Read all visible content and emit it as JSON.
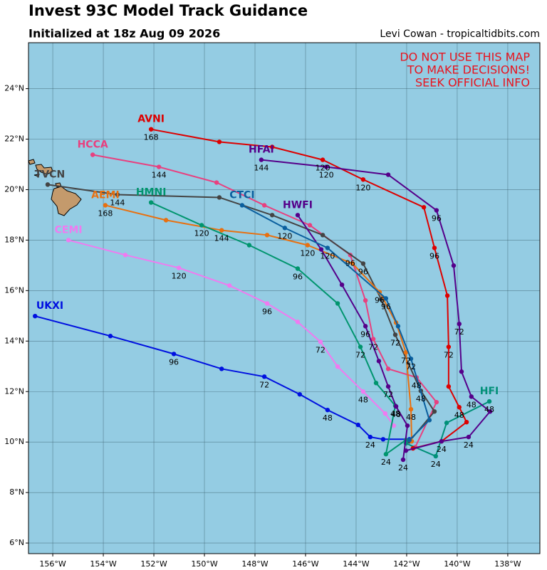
{
  "chart_data": {
    "type": "track-map",
    "title": "Invest 93C Model Track Guidance",
    "subtitle": "Initialized at 18z Aug 09 2026",
    "credit": "Levi Cowan - tropicaltidbits.com",
    "warning": [
      "DO NOT USE THIS MAP",
      "TO MAKE DECISIONS!",
      "SEEK OFFICIAL INFO"
    ],
    "warning_color": "#e8141e",
    "ocean_color": "#94cce3",
    "grid": true,
    "xlim": [
      -156.96,
      -136.73
    ],
    "ylim": [
      5.58,
      25.82
    ],
    "xticks": [
      {
        "value": -156,
        "label": "156°W"
      },
      {
        "value": -154,
        "label": "154°W"
      },
      {
        "value": -152,
        "label": "152°W"
      },
      {
        "value": -150,
        "label": "150°W"
      },
      {
        "value": -148,
        "label": "148°W"
      },
      {
        "value": -146,
        "label": "146°W"
      },
      {
        "value": -144,
        "label": "144°W"
      },
      {
        "value": -142,
        "label": "142°W"
      },
      {
        "value": -140,
        "label": "140°W"
      },
      {
        "value": -138,
        "label": "138°W"
      }
    ],
    "yticks": [
      {
        "value": 6,
        "label": "6°N"
      },
      {
        "value": 8,
        "label": "8°N"
      },
      {
        "value": 10,
        "label": "10°N"
      },
      {
        "value": 12,
        "label": "12°N"
      },
      {
        "value": 14,
        "label": "14°N"
      },
      {
        "value": 16,
        "label": "16°N"
      },
      {
        "value": 18,
        "label": "18°N"
      },
      {
        "value": 20,
        "label": "20°N"
      },
      {
        "value": 22,
        "label": "22°N"
      },
      {
        "value": 24,
        "label": "24°N"
      }
    ],
    "series": [
      {
        "name": "UKXI",
        "color": "#0010e0",
        "points": [
          {
            "lon": -141.89,
            "lat": 10.11
          },
          {
            "lon": -142.93,
            "lat": 10.11
          },
          {
            "lon": -143.44,
            "lat": 10.2,
            "hour": 24
          },
          {
            "lon": -143.92,
            "lat": 10.68
          },
          {
            "lon": -145.13,
            "lat": 11.27,
            "hour": 48
          },
          {
            "lon": -146.23,
            "lat": 11.89
          },
          {
            "lon": -147.63,
            "lat": 12.59,
            "hour": 72
          },
          {
            "lon": -149.32,
            "lat": 12.9
          },
          {
            "lon": -151.21,
            "lat": 13.49,
            "hour": 96
          },
          {
            "lon": -153.72,
            "lat": 14.2
          },
          {
            "lon": -156.7,
            "lat": 14.99
          }
        ]
      },
      {
        "name": "CEMI",
        "color": "#f07af0",
        "points": [
          {
            "lon": -142.51,
            "lat": 10.65
          },
          {
            "lon": -142.85,
            "lat": 11.13
          },
          {
            "lon": -143.72,
            "lat": 12.0,
            "hour": 48
          },
          {
            "lon": -144.73,
            "lat": 12.99
          },
          {
            "lon": -145.41,
            "lat": 13.97,
            "hour": 72
          },
          {
            "lon": -146.31,
            "lat": 14.76
          },
          {
            "lon": -147.52,
            "lat": 15.49,
            "hour": 96
          },
          {
            "lon": -149.01,
            "lat": 16.2
          },
          {
            "lon": -151.01,
            "lat": 16.9,
            "hour": 120
          },
          {
            "lon": -153.13,
            "lat": 17.41
          },
          {
            "lon": -155.38,
            "lat": 18.0
          }
        ]
      },
      {
        "name": "HCCA",
        "color": "#e8407f",
        "points": [
          {
            "lon": -141.66,
            "lat": 9.8
          },
          {
            "lon": -140.82,
            "lat": 11.58
          },
          {
            "lon": -141.61,
            "lat": 12.56,
            "hour": 48
          },
          {
            "lon": -142.73,
            "lat": 12.9
          },
          {
            "lon": -143.32,
            "lat": 14.08,
            "hour": 72
          },
          {
            "lon": -143.63,
            "lat": 15.61
          },
          {
            "lon": -144.23,
            "lat": 17.41,
            "hour": 96
          },
          {
            "lon": -145.83,
            "lat": 18.59
          },
          {
            "lon": -147.63,
            "lat": 19.38
          },
          {
            "lon": -149.52,
            "lat": 20.28
          },
          {
            "lon": -151.8,
            "lat": 20.9,
            "hour": 144
          },
          {
            "lon": -154.42,
            "lat": 21.38
          }
        ]
      },
      {
        "name": "TVCN",
        "color": "#444444",
        "points": [
          {
            "lon": -141.89,
            "lat": 10.03
          },
          {
            "lon": -140.9,
            "lat": 11.21
          },
          {
            "lon": -141.44,
            "lat": 12.03,
            "hour": 48
          },
          {
            "lon": -142.45,
            "lat": 14.25,
            "hour": 72
          },
          {
            "lon": -143.01,
            "lat": 15.66
          },
          {
            "lon": -143.72,
            "lat": 17.07,
            "hour": 96
          },
          {
            "lon": -145.32,
            "lat": 18.2
          },
          {
            "lon": -147.32,
            "lat": 18.99
          },
          {
            "lon": -149.41,
            "lat": 19.69
          },
          {
            "lon": -153.44,
            "lat": 19.8,
            "hour": 144
          },
          {
            "lon": -156.2,
            "lat": 20.2
          }
        ]
      },
      {
        "name": "AEMI",
        "color": "#e87010",
        "points": [
          {
            "lon": -141.8,
            "lat": 10.03
          },
          {
            "lon": -141.83,
            "lat": 11.3,
            "hour": 48
          },
          {
            "lon": -142.03,
            "lat": 13.55,
            "hour": 72
          },
          {
            "lon": -142.42,
            "lat": 14.73
          },
          {
            "lon": -143.07,
            "lat": 15.94,
            "hour": 96
          },
          {
            "lon": -144.14,
            "lat": 17.07
          },
          {
            "lon": -145.92,
            "lat": 17.8,
            "hour": 120
          },
          {
            "lon": -147.52,
            "lat": 18.2
          },
          {
            "lon": -149.32,
            "lat": 18.39,
            "hour": 144
          },
          {
            "lon": -151.52,
            "lat": 18.79
          },
          {
            "lon": -153.92,
            "lat": 19.38,
            "hour": 168
          }
        ]
      },
      {
        "name": "HMNI",
        "color": "#00956e",
        "points": [
          {
            "lon": -142.03,
            "lat": 10.08
          },
          {
            "lon": -142.82,
            "lat": 9.52,
            "hour": 24
          },
          {
            "lon": -142.45,
            "lat": 11.44,
            "hour": 48
          },
          {
            "lon": -143.21,
            "lat": 12.34
          },
          {
            "lon": -143.83,
            "lat": 13.77,
            "hour": 72
          },
          {
            "lon": -144.73,
            "lat": 15.49
          },
          {
            "lon": -146.31,
            "lat": 16.87,
            "hour": 96
          },
          {
            "lon": -148.23,
            "lat": 17.8
          },
          {
            "lon": -150.11,
            "lat": 18.59,
            "hour": 120
          },
          {
            "lon": -152.11,
            "lat": 19.49
          }
        ]
      },
      {
        "name": "HFI",
        "color": "#009078",
        "points": [
          {
            "lon": -142.03,
            "lat": 9.95
          },
          {
            "lon": -140.85,
            "lat": 9.44,
            "hour": 24
          },
          {
            "lon": -140.42,
            "lat": 10.76
          },
          {
            "lon": -138.73,
            "lat": 11.61,
            "hour": 48
          }
        ]
      },
      {
        "name": "AVNI",
        "color": "#dd0000",
        "points": [
          {
            "lon": -141.75,
            "lat": 9.75
          },
          {
            "lon": -140.62,
            "lat": 10.03,
            "hour": 24
          },
          {
            "lon": -139.63,
            "lat": 10.79
          },
          {
            "lon": -139.92,
            "lat": 11.38,
            "hour": 48
          },
          {
            "lon": -140.34,
            "lat": 12.2
          },
          {
            "lon": -140.34,
            "lat": 13.77,
            "hour": 72
          },
          {
            "lon": -140.39,
            "lat": 15.8
          },
          {
            "lon": -140.9,
            "lat": 17.69,
            "hour": 96
          },
          {
            "lon": -141.32,
            "lat": 19.3
          },
          {
            "lon": -143.72,
            "lat": 20.4,
            "hour": 120
          },
          {
            "lon": -145.32,
            "lat": 21.18,
            "hour": 120
          },
          {
            "lon": -147.32,
            "lat": 21.69
          },
          {
            "lon": -149.41,
            "lat": 21.89
          },
          {
            "lon": -152.11,
            "lat": 22.39,
            "hour": 168
          }
        ]
      },
      {
        "name": "HFAI",
        "color": "#55008a",
        "points": [
          {
            "lon": -142.03,
            "lat": 9.66
          },
          {
            "lon": -140.62,
            "lat": 10.03
          },
          {
            "lon": -139.55,
            "lat": 10.2,
            "hour": 24
          },
          {
            "lon": -138.7,
            "lat": 11.21
          },
          {
            "lon": -139.44,
            "lat": 11.8,
            "hour": 48
          },
          {
            "lon": -139.83,
            "lat": 12.79
          },
          {
            "lon": -139.92,
            "lat": 14.68,
            "hour": 72
          },
          {
            "lon": -140.14,
            "lat": 16.99
          },
          {
            "lon": -140.82,
            "lat": 19.18,
            "hour": 96
          },
          {
            "lon": -142.73,
            "lat": 20.59
          },
          {
            "lon": -145.18,
            "lat": 20.9,
            "hour": 120
          },
          {
            "lon": -147.75,
            "lat": 21.18,
            "hour": 144
          }
        ]
      },
      {
        "name": "HWFI",
        "color": "#55008a",
        "points": [
          {
            "lon": -142.14,
            "lat": 9.3,
            "hour": 24
          },
          {
            "lon": -141.97,
            "lat": 10.65
          },
          {
            "lon": -142.42,
            "lat": 11.41,
            "hour": 48
          },
          {
            "lon": -142.73,
            "lat": 12.2,
            "hour": 72
          },
          {
            "lon": -143.1,
            "lat": 13.21
          },
          {
            "lon": -143.63,
            "lat": 14.59,
            "hour": 96
          },
          {
            "lon": -144.56,
            "lat": 16.23
          },
          {
            "lon": -145.38,
            "lat": 17.63
          },
          {
            "lon": -146.31,
            "lat": 18.99
          }
        ]
      },
      {
        "name": "CTCI",
        "color": "#0a5f9e",
        "points": [
          {
            "lon": -141.89,
            "lat": 10.08
          },
          {
            "lon": -141.1,
            "lat": 10.87
          },
          {
            "lon": -141.83,
            "lat": 13.3,
            "hour": 72
          },
          {
            "lon": -142.34,
            "lat": 14.59
          },
          {
            "lon": -142.82,
            "lat": 15.69,
            "hour": 96
          },
          {
            "lon": -145.13,
            "lat": 17.69,
            "hour": 120
          },
          {
            "lon": -146.82,
            "lat": 18.48,
            "hour": 120
          },
          {
            "lon": -148.51,
            "lat": 19.38
          }
        ]
      }
    ]
  }
}
